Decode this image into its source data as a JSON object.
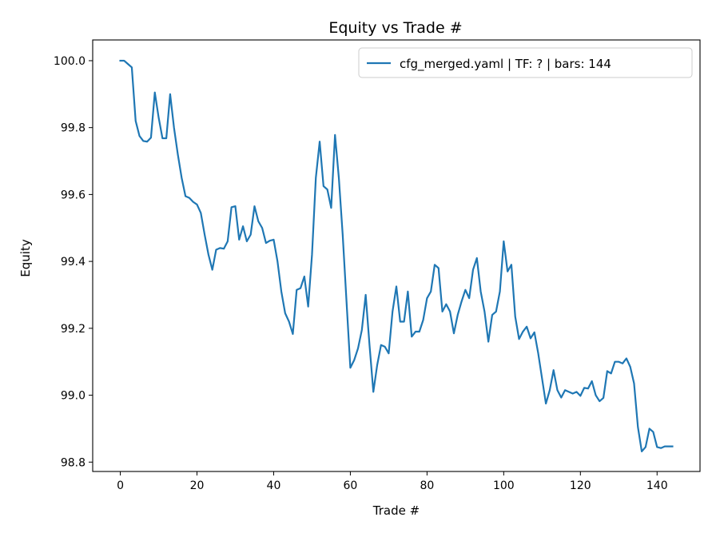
{
  "chart_data": {
    "type": "line",
    "title": "Equity vs Trade #",
    "xlabel": "Trade #",
    "ylabel": "Equity",
    "xlim": [
      -7.2,
      151.2
    ],
    "ylim": [
      98.772,
      100.062
    ],
    "xticks": [
      0,
      20,
      40,
      60,
      80,
      100,
      120,
      140
    ],
    "yticks": [
      98.8,
      99.0,
      99.2,
      99.4,
      99.6,
      99.8,
      100.0
    ],
    "xtick_labels": [
      "0",
      "20",
      "40",
      "60",
      "80",
      "100",
      "120",
      "140"
    ],
    "ytick_labels": [
      "98.8",
      "99.0",
      "99.2",
      "99.4",
      "99.6",
      "99.8",
      "100.0"
    ],
    "grid": false,
    "legend_position": "top-right",
    "series": [
      {
        "name": "cfg_merged.yaml | TF: ? | bars: 144",
        "color": "#1f77b4",
        "x": [
          0,
          1,
          2,
          3,
          4,
          5,
          6,
          7,
          8,
          9,
          10,
          11,
          12,
          13,
          14,
          15,
          16,
          17,
          18,
          19,
          20,
          21,
          22,
          23,
          24,
          25,
          26,
          27,
          28,
          29,
          30,
          31,
          32,
          33,
          34,
          35,
          36,
          37,
          38,
          39,
          40,
          41,
          42,
          43,
          44,
          45,
          46,
          47,
          48,
          49,
          50,
          51,
          52,
          53,
          54,
          55,
          56,
          57,
          58,
          59,
          60,
          61,
          62,
          63,
          64,
          65,
          66,
          67,
          68,
          69,
          70,
          71,
          72,
          73,
          74,
          75,
          76,
          77,
          78,
          79,
          80,
          81,
          82,
          83,
          84,
          85,
          86,
          87,
          88,
          89,
          90,
          91,
          92,
          93,
          94,
          95,
          96,
          97,
          98,
          99,
          100,
          101,
          102,
          103,
          104,
          105,
          106,
          107,
          108,
          109,
          110,
          111,
          112,
          113,
          114,
          115,
          116,
          117,
          118,
          119,
          120,
          121,
          122,
          123,
          124,
          125,
          126,
          127,
          128,
          129,
          130,
          131,
          132,
          133,
          134,
          135,
          136,
          137,
          138,
          139,
          140,
          141,
          142,
          143,
          144
        ],
        "y": [
          100.0,
          100.0,
          99.99,
          99.98,
          99.82,
          99.775,
          99.76,
          99.758,
          99.77,
          99.905,
          99.83,
          99.768,
          99.768,
          99.9,
          99.8,
          99.72,
          99.65,
          99.595,
          99.59,
          99.578,
          99.57,
          99.545,
          99.48,
          99.42,
          99.375,
          99.435,
          99.44,
          99.438,
          99.46,
          99.562,
          99.565,
          99.465,
          99.505,
          99.46,
          99.48,
          99.565,
          99.52,
          99.5,
          99.455,
          99.462,
          99.465,
          99.4,
          99.31,
          99.245,
          99.22,
          99.183,
          99.315,
          99.32,
          99.355,
          99.265,
          99.42,
          99.65,
          99.758,
          99.625,
          99.615,
          99.56,
          99.778,
          99.65,
          99.48,
          99.28,
          99.082,
          99.105,
          99.14,
          99.195,
          99.3,
          99.15,
          99.01,
          99.09,
          99.15,
          99.145,
          99.125,
          99.25,
          99.325,
          99.22,
          99.22,
          99.31,
          99.175,
          99.19,
          99.19,
          99.225,
          99.29,
          99.31,
          99.39,
          99.38,
          99.25,
          99.272,
          99.25,
          99.185,
          99.24,
          99.28,
          99.315,
          99.29,
          99.375,
          99.41,
          99.31,
          99.25,
          99.16,
          99.24,
          99.25,
          99.31,
          99.46,
          99.37,
          99.39,
          99.235,
          99.168,
          99.19,
          99.205,
          99.17,
          99.188,
          99.125,
          99.05,
          98.975,
          99.015,
          99.075,
          99.015,
          98.993,
          99.015,
          99.01,
          99.005,
          99.01,
          98.998,
          99.022,
          99.02,
          99.042,
          99.0,
          98.982,
          98.992,
          99.072,
          99.065,
          99.1,
          99.1,
          99.095,
          99.11,
          99.085,
          99.035,
          98.905,
          98.832,
          98.845,
          98.9,
          98.89,
          98.845,
          98.842,
          98.847,
          98.847,
          98.847
        ]
      }
    ]
  }
}
